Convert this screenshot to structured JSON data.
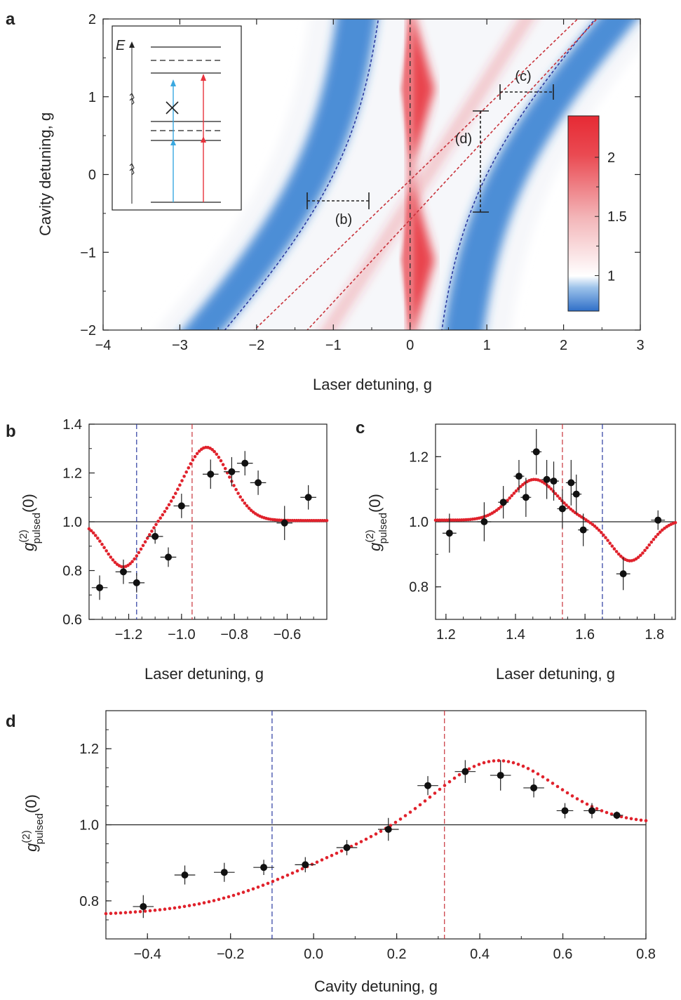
{
  "figure": {
    "panel_labels": {
      "a": "a",
      "b": "b",
      "c": "c",
      "d": "d"
    }
  },
  "colors": {
    "red": "#e8323c",
    "blue": "#2f7bd0",
    "dark_blue_line": "#2a3aa0",
    "dark_red_line": "#c8323a",
    "inset_blue": "#3aa8e0",
    "inset_red": "#e8323c",
    "marker": "#111111"
  },
  "chart_data": [
    {
      "id": "a",
      "type": "heatmap",
      "xlabel": "Laser detuning, g",
      "ylabel": "Cavity detuning, g",
      "xlim": [
        -4,
        3
      ],
      "ylim": [
        -2,
        2
      ],
      "xticks": [
        -4,
        -3,
        -2,
        -1,
        0,
        1,
        2,
        3
      ],
      "yticks": [
        -2,
        -1,
        0,
        1,
        2
      ],
      "xtick_labels": [
        "−4",
        "−3",
        "−2",
        "−1",
        "0",
        "1",
        "2",
        "3"
      ],
      "ytick_labels": [
        "−2",
        "−1",
        "0",
        "1",
        "2"
      ],
      "colorbar": {
        "range": [
          0.7,
          2.35
        ],
        "ticks": [
          1,
          1.5,
          2
        ],
        "tick_labels": [
          "1",
          "1.5",
          "2"
        ]
      },
      "segment_labels": {
        "b": "(b)",
        "c": "(c)",
        "d": "(d)"
      },
      "inset": {
        "energy_label": "E"
      }
    },
    {
      "id": "b",
      "type": "scatter",
      "xlabel": "Laser detuning, g",
      "ylabel_base": "g",
      "ylabel_sup": "(2)",
      "ylabel_sub": "pulsed",
      "ylabel_tail": "(0)",
      "xlim": [
        -1.35,
        -0.45
      ],
      "ylim": [
        0.6,
        1.4
      ],
      "xticks": [
        -1.2,
        -1.0,
        -0.8,
        -0.6
      ],
      "xtick_labels": [
        "−1.2",
        "−1.0",
        "−0.8",
        "−0.6"
      ],
      "yticks": [
        0.6,
        0.8,
        1.0,
        1.2,
        1.4
      ],
      "ytick_labels": [
        "0.6",
        "0.8",
        "1.0",
        "1.2",
        "1.4"
      ],
      "reference_y": 1.0,
      "blue_dash_x": -1.17,
      "red_dash_x": -0.96,
      "x": [
        -1.31,
        -1.22,
        -1.17,
        -1.1,
        -1.05,
        -1.0,
        -0.89,
        -0.81,
        -0.76,
        -0.71,
        -0.61,
        -0.52
      ],
      "y": [
        0.73,
        0.795,
        0.75,
        0.94,
        0.855,
        1.065,
        1.195,
        1.205,
        1.24,
        1.16,
        0.995,
        1.1
      ],
      "xerr": [
        0.03,
        0.03,
        0.03,
        0.03,
        0.03,
        0.03,
        0.03,
        0.03,
        0.03,
        0.03,
        0.03,
        0.03
      ],
      "yerr": [
        0.05,
        0.05,
        0.04,
        0.03,
        0.04,
        0.05,
        0.06,
        0.06,
        0.05,
        0.05,
        0.07,
        0.05
      ],
      "theory": {
        "baseline": 1.005,
        "dip_center": -1.22,
        "dip_depth": 0.19,
        "dip_width": 0.07,
        "peak_center": -0.905,
        "peak_height": 0.3,
        "peak_width": 0.085,
        "color": "#e0222c"
      }
    },
    {
      "id": "c",
      "type": "scatter",
      "xlabel": "Laser detuning, g",
      "ylabel_base": "g",
      "ylabel_sup": "(2)",
      "ylabel_sub": "pulsed",
      "ylabel_tail": "(0)",
      "xlim": [
        1.17,
        1.86
      ],
      "ylim": [
        0.7,
        1.3
      ],
      "xticks": [
        1.2,
        1.4,
        1.6,
        1.8
      ],
      "xtick_labels": [
        "1.2",
        "1.4",
        "1.6",
        "1.8"
      ],
      "yticks": [
        0.8,
        1.0,
        1.2
      ],
      "ytick_labels": [
        "0.8",
        "1.0",
        "1.2"
      ],
      "reference_y": 1.0,
      "blue_dash_x": 1.65,
      "red_dash_x": 1.535,
      "x": [
        1.21,
        1.31,
        1.365,
        1.41,
        1.43,
        1.46,
        1.49,
        1.51,
        1.535,
        1.56,
        1.575,
        1.595,
        1.71,
        1.81
      ],
      "y": [
        0.965,
        1.0,
        1.06,
        1.14,
        1.075,
        1.215,
        1.13,
        1.125,
        1.04,
        1.12,
        1.085,
        0.975,
        0.84,
        1.005
      ],
      "xerr": [
        0.02,
        0.02,
        0.015,
        0.015,
        0.015,
        0.015,
        0.015,
        0.015,
        0.015,
        0.015,
        0.015,
        0.015,
        0.02,
        0.02
      ],
      "yerr": [
        0.06,
        0.06,
        0.05,
        0.05,
        0.06,
        0.07,
        0.06,
        0.06,
        0.06,
        0.07,
        0.06,
        0.05,
        0.05,
        0.03
      ],
      "theory": {
        "baseline": 1.005,
        "peak_center": 1.455,
        "peak_height": 0.125,
        "peak_width": 0.065,
        "dip_center": 1.73,
        "dip_depth": 0.125,
        "dip_width": 0.055,
        "color": "#e0222c"
      }
    },
    {
      "id": "d",
      "type": "scatter",
      "xlabel": "Cavity detuning, g",
      "ylabel_base": "g",
      "ylabel_sup": "(2)",
      "ylabel_sub": "pulsed",
      "ylabel_tail": "(0)",
      "xlim": [
        -0.5,
        0.8
      ],
      "ylim": [
        0.7,
        1.3
      ],
      "xticks": [
        -0.4,
        -0.2,
        0.0,
        0.2,
        0.4,
        0.6,
        0.8
      ],
      "xtick_labels": [
        "−0.4",
        "−0.2",
        "0.0",
        "0.2",
        "0.4",
        "0.6",
        "0.8"
      ],
      "yticks": [
        0.8,
        1.0,
        1.2
      ],
      "ytick_labels": [
        "0.8",
        "1.0",
        "1.2"
      ],
      "reference_y": 1.0,
      "blue_dash_x": -0.1,
      "red_dash_x": 0.315,
      "x": [
        -0.41,
        -0.31,
        -0.215,
        -0.12,
        -0.02,
        0.08,
        0.18,
        0.275,
        0.365,
        0.45,
        0.53,
        0.605,
        0.67,
        0.73
      ],
      "y": [
        0.785,
        0.868,
        0.875,
        0.888,
        0.895,
        0.94,
        0.988,
        1.103,
        1.14,
        1.13,
        1.097,
        1.037,
        1.037,
        1.025
      ],
      "xerr": [
        0.025,
        0.025,
        0.025,
        0.025,
        0.025,
        0.025,
        0.025,
        0.025,
        0.025,
        0.025,
        0.025,
        0.02,
        0.02,
        0.015
      ],
      "yerr": [
        0.03,
        0.025,
        0.025,
        0.02,
        0.02,
        0.02,
        0.03,
        0.025,
        0.03,
        0.04,
        0.025,
        0.02,
        0.02,
        0.01
      ],
      "theory": {
        "baseline": 1.005,
        "low": 0.76,
        "sigmoid_center": -0.03,
        "sigmoid_width": 0.13,
        "peak_center": 0.44,
        "peak_height": 0.17,
        "peak_width": 0.14,
        "color": "#e0222c"
      }
    }
  ]
}
